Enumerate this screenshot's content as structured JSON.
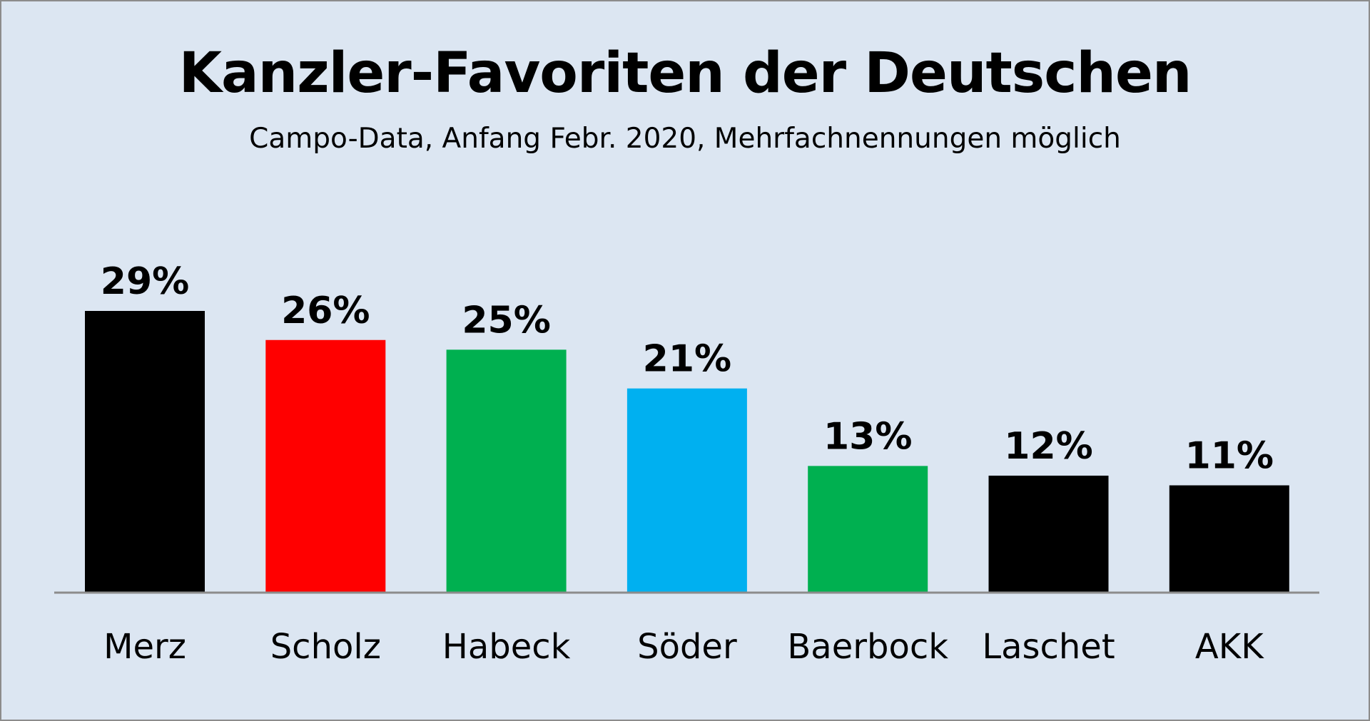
{
  "chart_data": {
    "type": "bar",
    "title": "Kanzler-Favoriten der Deutschen",
    "subtitle": "Campo-Data, Anfang Febr. 2020, Mehrfachnennungen möglich",
    "categories": [
      "Merz",
      "Scholz",
      "Habeck",
      "Söder",
      "Baerbock",
      "Laschet",
      "AKK"
    ],
    "values": [
      29,
      26,
      25,
      21,
      13,
      12,
      11
    ],
    "data_labels": [
      "29%",
      "26%",
      "25%",
      "21%",
      "13%",
      "12%",
      "11%"
    ],
    "colors": [
      "#000000",
      "#ff0000",
      "#00b050",
      "#00b0f0",
      "#00b050",
      "#000000",
      "#000000"
    ],
    "xlabel": "",
    "ylabel": "",
    "unit": "%",
    "ylim": [
      0,
      29
    ],
    "grid": false,
    "legend": "none"
  },
  "colors": {
    "background": "#dce6f2",
    "axis": "#8c8c8c"
  }
}
